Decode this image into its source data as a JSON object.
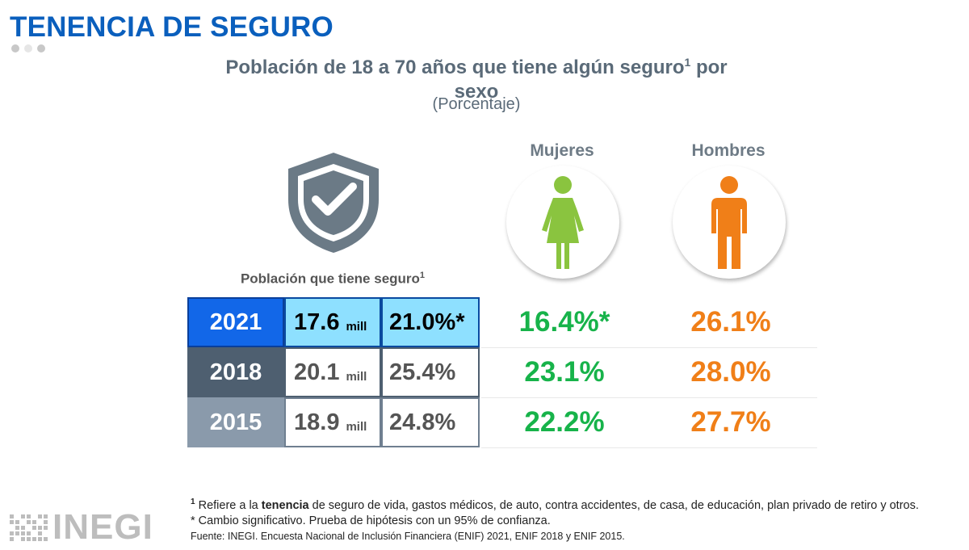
{
  "header": {
    "title": "TENENCIA DE SEGURO",
    "subtitle_line1": "Población de 18 a 70 años que tiene algún seguro",
    "subtitle_sup": "1",
    "subtitle_after": " por",
    "subtitle_line2": "sexo",
    "units": "(Porcentaje)"
  },
  "shield": {
    "icon": "shield-check-icon",
    "color": "#6b7a86"
  },
  "population_label": {
    "text": "Población que tiene seguro",
    "sup": "1"
  },
  "columns": {
    "women": "Mujeres",
    "men": "Hombres"
  },
  "rows": [
    {
      "year": "2021",
      "millions": "17.6",
      "unit": "mill",
      "percent": "21.0%*",
      "women": "16.4%*",
      "men": "26.1%"
    },
    {
      "year": "2018",
      "millions": "20.1",
      "unit": "mill",
      "percent": "25.4%",
      "women": "23.1%",
      "men": "28.0%"
    },
    {
      "year": "2015",
      "millions": "18.9",
      "unit": "mill",
      "percent": "24.8%",
      "women": "22.2%",
      "men": "27.7%"
    }
  ],
  "colors": {
    "women": "#17b34a",
    "men": "#f07f18",
    "title": "#0a5fbd",
    "highlight": "#8ee0ff"
  },
  "footnotes": {
    "note1_sup": "1",
    "note1_pre": " Refiere a la ",
    "note1_bold": "tenencia",
    "note1_post": " de seguro de vida, gastos médicos, de auto, contra accidentes, de casa, de educación, plan privado de retiro y otros.",
    "note2": "* Cambio significativo. Prueba de hipótesis con un 95% de confianza.",
    "source": "Fuente: INEGI. Encuesta Nacional de Inclusión Financiera (ENIF) 2021, ENIF 2018 y ENIF 2015."
  },
  "logo": {
    "text": "INEGI"
  }
}
